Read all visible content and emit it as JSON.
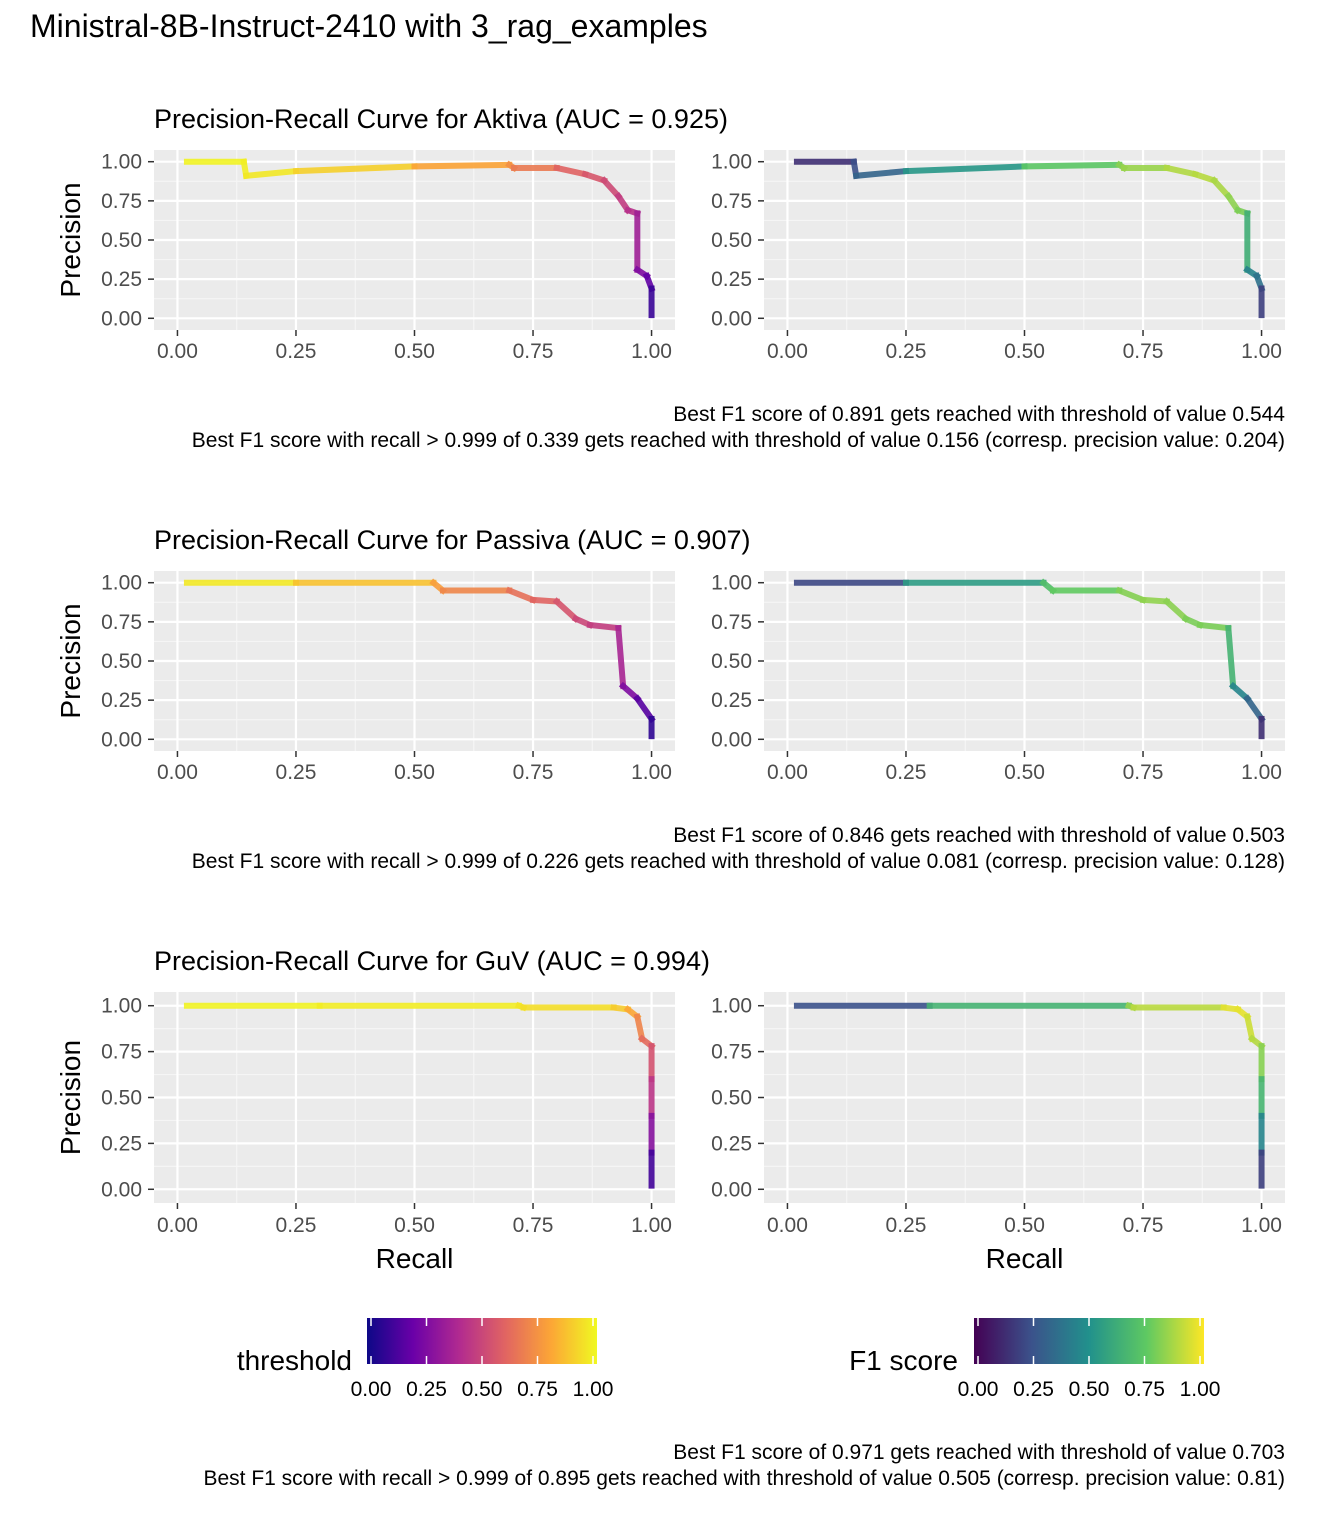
{
  "title": "Ministral-8B-Instruct-2410 with 3_rag_examples",
  "legends": {
    "threshold": {
      "title": "threshold",
      "ticks": [
        "0.00",
        "0.25",
        "0.50",
        "0.75",
        "1.00"
      ],
      "colors": [
        "#0d0887",
        "#6a00a8",
        "#b12a90",
        "#e16462",
        "#fca636",
        "#f0f921"
      ]
    },
    "f1": {
      "title": "F1 score",
      "ticks": [
        "0.00",
        "0.25",
        "0.50",
        "0.75",
        "1.00"
      ],
      "colors": [
        "#440154",
        "#3b528b",
        "#21918c",
        "#5ec962",
        "#fde725"
      ]
    }
  },
  "chart_data": [
    {
      "type": "line",
      "title": "Precision-Recall Curve for Aktiva (AUC = 0.925)",
      "ylabel": "Precision",
      "xlabel": "",
      "xlim": [
        0,
        1
      ],
      "ylim": [
        0,
        1
      ],
      "x_ticks": [
        "0.00",
        "0.25",
        "0.50",
        "0.75",
        "1.00"
      ],
      "y_ticks": [
        "0.00",
        "0.25",
        "0.50",
        "0.75",
        "1.00"
      ],
      "grid": true,
      "panels": [
        "threshold",
        "F1 score"
      ],
      "points": [
        {
          "recall": 0.02,
          "precision": 1.0,
          "threshold": 0.99,
          "f1": 0.04
        },
        {
          "recall": 0.14,
          "precision": 1.0,
          "threshold": 0.98,
          "f1": 0.24
        },
        {
          "recall": 0.145,
          "precision": 0.91,
          "threshold": 0.97,
          "f1": 0.25
        },
        {
          "recall": 0.25,
          "precision": 0.94,
          "threshold": 0.95,
          "f1": 0.39
        },
        {
          "recall": 0.5,
          "precision": 0.97,
          "threshold": 0.85,
          "f1": 0.66
        },
        {
          "recall": 0.7,
          "precision": 0.98,
          "threshold": 0.74,
          "f1": 0.82
        },
        {
          "recall": 0.71,
          "precision": 0.96,
          "threshold": 0.72,
          "f1": 0.82
        },
        {
          "recall": 0.8,
          "precision": 0.96,
          "threshold": 0.62,
          "f1": 0.87
        },
        {
          "recall": 0.86,
          "precision": 0.92,
          "threshold": 0.57,
          "f1": 0.89
        },
        {
          "recall": 0.9,
          "precision": 0.88,
          "threshold": 0.54,
          "f1": 0.89
        },
        {
          "recall": 0.93,
          "precision": 0.78,
          "threshold": 0.49,
          "f1": 0.85
        },
        {
          "recall": 0.95,
          "precision": 0.69,
          "threshold": 0.44,
          "f1": 0.8
        },
        {
          "recall": 0.97,
          "precision": 0.67,
          "threshold": 0.4,
          "f1": 0.79
        },
        {
          "recall": 0.97,
          "precision": 0.31,
          "threshold": 0.3,
          "f1": 0.47
        },
        {
          "recall": 0.99,
          "precision": 0.27,
          "threshold": 0.22,
          "f1": 0.42
        },
        {
          "recall": 1.0,
          "precision": 0.19,
          "threshold": 0.14,
          "f1": 0.33
        },
        {
          "recall": 1.0,
          "precision": 0.02,
          "threshold": 0.05,
          "f1": 0.05
        }
      ],
      "caption": [
        "Best F1 score of 0.891 gets reached with threshold of value 0.544",
        "Best F1 score with recall > 0.999 of 0.339 gets reached with threshold of value 0.156 (corresp. precision value: 0.204)"
      ]
    },
    {
      "type": "line",
      "title": "Precision-Recall Curve for Passiva (AUC = 0.907)",
      "ylabel": "Precision",
      "xlabel": "",
      "xlim": [
        0,
        1
      ],
      "ylim": [
        0,
        1
      ],
      "x_ticks": [
        "0.00",
        "0.25",
        "0.50",
        "0.75",
        "1.00"
      ],
      "y_ticks": [
        "0.00",
        "0.25",
        "0.50",
        "0.75",
        "1.00"
      ],
      "grid": true,
      "panels": [
        "threshold",
        "F1 score"
      ],
      "points": [
        {
          "recall": 0.02,
          "precision": 1.0,
          "threshold": 0.99,
          "f1": 0.04
        },
        {
          "recall": 0.25,
          "precision": 1.0,
          "threshold": 0.93,
          "f1": 0.4
        },
        {
          "recall": 0.54,
          "precision": 1.0,
          "threshold": 0.8,
          "f1": 0.7
        },
        {
          "recall": 0.56,
          "precision": 0.95,
          "threshold": 0.75,
          "f1": 0.71
        },
        {
          "recall": 0.7,
          "precision": 0.95,
          "threshold": 0.66,
          "f1": 0.8
        },
        {
          "recall": 0.75,
          "precision": 0.89,
          "threshold": 0.62,
          "f1": 0.82
        },
        {
          "recall": 0.8,
          "precision": 0.88,
          "threshold": 0.58,
          "f1": 0.84
        },
        {
          "recall": 0.84,
          "precision": 0.77,
          "threshold": 0.52,
          "f1": 0.8
        },
        {
          "recall": 0.87,
          "precision": 0.73,
          "threshold": 0.49,
          "f1": 0.79
        },
        {
          "recall": 0.93,
          "precision": 0.71,
          "threshold": 0.45,
          "f1": 0.8
        },
        {
          "recall": 0.94,
          "precision": 0.34,
          "threshold": 0.3,
          "f1": 0.5
        },
        {
          "recall": 0.97,
          "precision": 0.26,
          "threshold": 0.22,
          "f1": 0.41
        },
        {
          "recall": 1.0,
          "precision": 0.13,
          "threshold": 0.1,
          "f1": 0.23
        },
        {
          "recall": 1.0,
          "precision": 0.02,
          "threshold": 0.04,
          "f1": 0.05
        }
      ],
      "caption": [
        "Best F1 score of 0.846 gets reached with threshold of value 0.503",
        "Best F1 score with recall > 0.999 of 0.226 gets reached with threshold of value 0.081 (corresp. precision value: 0.128)"
      ]
    },
    {
      "type": "line",
      "title": "Precision-Recall Curve for GuV (AUC = 0.994)",
      "ylabel": "Precision",
      "xlabel": "Recall",
      "xlim": [
        0,
        1
      ],
      "ylim": [
        0,
        1
      ],
      "x_ticks": [
        "0.00",
        "0.25",
        "0.50",
        "0.75",
        "1.00"
      ],
      "y_ticks": [
        "0.00",
        "0.25",
        "0.50",
        "0.75",
        "1.00"
      ],
      "grid": true,
      "panels": [
        "threshold",
        "F1 score"
      ],
      "points": [
        {
          "recall": 0.02,
          "precision": 1.0,
          "threshold": 0.99,
          "f1": 0.04
        },
        {
          "recall": 0.3,
          "precision": 1.0,
          "threshold": 0.98,
          "f1": 0.46
        },
        {
          "recall": 0.72,
          "precision": 1.0,
          "threshold": 0.96,
          "f1": 0.84
        },
        {
          "recall": 0.73,
          "precision": 0.99,
          "threshold": 0.95,
          "f1": 0.84
        },
        {
          "recall": 0.92,
          "precision": 0.99,
          "threshold": 0.92,
          "f1": 0.95
        },
        {
          "recall": 0.95,
          "precision": 0.98,
          "threshold": 0.86,
          "f1": 0.97
        },
        {
          "recall": 0.97,
          "precision": 0.94,
          "threshold": 0.74,
          "f1": 0.96
        },
        {
          "recall": 0.98,
          "precision": 0.82,
          "threshold": 0.66,
          "f1": 0.89
        },
        {
          "recall": 1.0,
          "precision": 0.78,
          "threshold": 0.58,
          "f1": 0.88
        },
        {
          "recall": 1.0,
          "precision": 0.6,
          "threshold": 0.5,
          "f1": 0.75
        },
        {
          "recall": 1.0,
          "precision": 0.4,
          "threshold": 0.38,
          "f1": 0.57
        },
        {
          "recall": 1.0,
          "precision": 0.2,
          "threshold": 0.18,
          "f1": 0.33
        },
        {
          "recall": 1.0,
          "precision": 0.02,
          "threshold": 0.05,
          "f1": 0.05
        }
      ],
      "caption": [
        "Best F1 score of 0.971 gets reached with threshold of value 0.703",
        "Best F1 score with recall > 0.999 of 0.895 gets reached with threshold of value 0.505 (corresp. precision value: 0.81)"
      ]
    }
  ]
}
